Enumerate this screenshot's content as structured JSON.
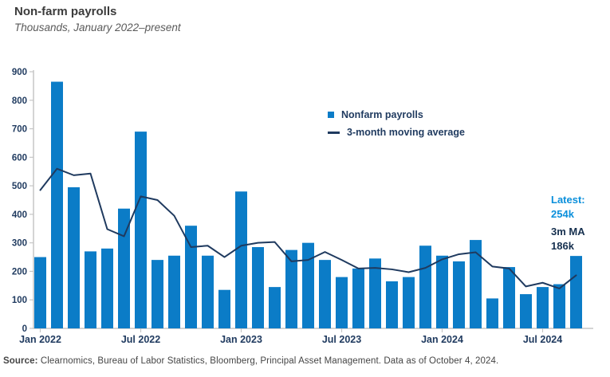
{
  "header": {
    "title": "Non-farm payrolls",
    "subtitle": "Thousands, January 2022–present"
  },
  "legend": {
    "items": [
      {
        "label": "Nonfarm payrolls",
        "marker": "square"
      },
      {
        "label": "3-month moving average",
        "marker": "dash"
      }
    ]
  },
  "annotation": {
    "latest_label": "Latest:",
    "latest_value": "254k",
    "ma_label": "3m MA",
    "ma_value": "186k"
  },
  "source": {
    "label": "Source:",
    "text": "Clearnomics, Bureau of Labor Statistics, Bloomberg, Principal Asset Management. Data as of October 4, 2024."
  },
  "colors": {
    "bar": "#0b7cc7",
    "line": "#1f3a5f",
    "accent_blue": "#0a8fdb",
    "dark_text": "#16304f",
    "axis_line": "#c6c6c6",
    "title": "#3b3b3b",
    "subtitle": "#5a5a5a",
    "source": "#454545"
  },
  "chart_data": {
    "type": "bar",
    "title": "Non-farm payrolls",
    "subtitle": "Thousands, January 2022–present",
    "unit": "thousands",
    "grid": false,
    "legend_position": "upper-center",
    "ylim": [
      0,
      900
    ],
    "y_ticks": [
      0,
      100,
      200,
      300,
      400,
      500,
      600,
      700,
      800,
      900
    ],
    "x_tick_labels": [
      "Jan 2022",
      "Jul 2022",
      "Jan 2023",
      "Jul 2023",
      "Jan 2024",
      "Jul 2024"
    ],
    "x_tick_indices": [
      0,
      6,
      12,
      18,
      24,
      30
    ],
    "categories": [
      "Jan 2022",
      "Feb 2022",
      "Mar 2022",
      "Apr 2022",
      "May 2022",
      "Jun 2022",
      "Jul 2022",
      "Aug 2022",
      "Sep 2022",
      "Oct 2022",
      "Nov 2022",
      "Dec 2022",
      "Jan 2023",
      "Feb 2023",
      "Mar 2023",
      "Apr 2023",
      "May 2023",
      "Jun 2023",
      "Jul 2023",
      "Aug 2023",
      "Sep 2023",
      "Oct 2023",
      "Nov 2023",
      "Dec 2023",
      "Jan 2024",
      "Feb 2024",
      "Mar 2024",
      "Apr 2024",
      "May 2024",
      "Jun 2024",
      "Jul 2024",
      "Aug 2024",
      "Sep 2024"
    ],
    "series": [
      {
        "name": "Nonfarm payrolls",
        "type": "bar",
        "values": [
          250,
          865,
          495,
          270,
          280,
          420,
          690,
          240,
          255,
          360,
          255,
          135,
          480,
          285,
          145,
          275,
          300,
          240,
          180,
          210,
          245,
          165,
          180,
          290,
          255,
          235,
          310,
          105,
          215,
          120,
          145,
          155,
          254
        ]
      },
      {
        "name": "3-month moving average",
        "type": "line",
        "values": [
          485,
          560,
          537,
          543,
          348,
          323,
          463,
          450,
          395,
          285,
          290,
          250,
          290,
          300,
          303,
          235,
          240,
          268,
          240,
          210,
          212,
          207,
          197,
          212,
          242,
          260,
          267,
          217,
          210,
          147,
          160,
          140,
          186
        ]
      }
    ],
    "annotations": {
      "latest": "254k",
      "ma_3m": "186k"
    }
  }
}
